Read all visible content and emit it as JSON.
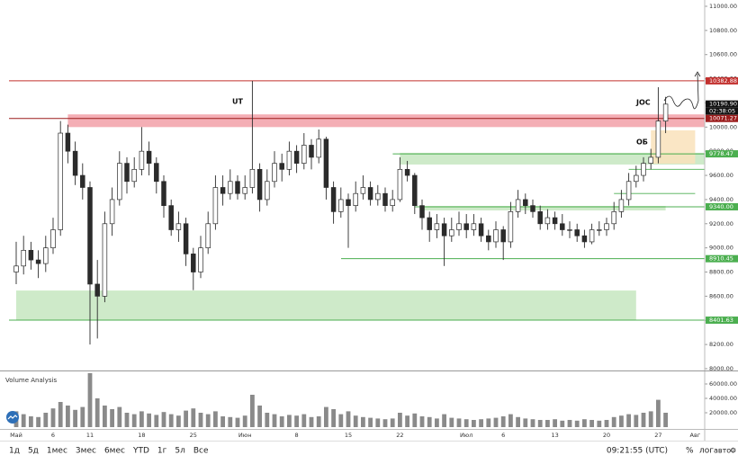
{
  "chart_data": {
    "type": "candlestick",
    "categories": [
      "Май",
      null,
      null,
      null,
      null,
      "6",
      null,
      null,
      null,
      null,
      "11",
      null,
      null,
      null,
      null,
      null,
      null,
      "18",
      null,
      null,
      null,
      null,
      null,
      null,
      "25",
      null,
      null,
      null,
      null,
      null,
      null,
      "Июн",
      null,
      null,
      null,
      null,
      null,
      null,
      "8",
      null,
      null,
      null,
      null,
      null,
      null,
      "15",
      null,
      null,
      null,
      null,
      null,
      null,
      "22",
      null,
      null,
      null,
      null,
      null,
      null,
      null,
      null,
      "Июл",
      null,
      null,
      null,
      null,
      "6",
      null,
      null,
      null,
      null,
      null,
      null,
      "13",
      null,
      null,
      null,
      null,
      null,
      null,
      "20",
      null,
      null,
      null,
      null,
      null,
      null,
      "27",
      null,
      null,
      null,
      null,
      "Авг"
    ],
    "open": [
      8800,
      8850,
      8980,
      8900,
      8870,
      9000,
      9150,
      9950,
      9800,
      9600,
      9500,
      8700,
      8600,
      9200,
      9400,
      9700,
      9550,
      9650,
      9800,
      9700,
      9550,
      9350,
      9150,
      9200,
      8950,
      8800,
      9000,
      9200,
      9500,
      9450,
      9550,
      9450,
      9500,
      9650,
      9400,
      9550,
      9700,
      9650,
      9800,
      9700,
      9850,
      9750,
      9900,
      9500,
      9300,
      9400,
      9350,
      9450,
      9500,
      9400,
      9450,
      9350,
      9400,
      9650,
      9600,
      9350,
      9250,
      9150,
      9200,
      9100,
      9150,
      9200,
      9150,
      9200,
      9100,
      9050,
      9150,
      9050,
      9300,
      9400,
      9350,
      9300,
      9200,
      9250,
      9200,
      9150,
      9150,
      9100,
      9050,
      9150,
      9150,
      9200,
      9300,
      9400,
      9550,
      9600,
      9700,
      9750,
      10050,
      null,
      null,
      null,
      null
    ],
    "high": [
      9050,
      9100,
      9050,
      8980,
      9100,
      9250,
      10050,
      10020,
      9880,
      9700,
      9550,
      8900,
      9300,
      9500,
      9800,
      9750,
      9750,
      10000,
      9880,
      9750,
      9600,
      9400,
      9300,
      9250,
      9000,
      9100,
      9300,
      9600,
      9600,
      9650,
      9600,
      9600,
      10382,
      9700,
      9650,
      9800,
      9780,
      9880,
      9850,
      9950,
      9900,
      9980,
      9920,
      9550,
      9500,
      9450,
      9550,
      9600,
      9550,
      9520,
      9500,
      9480,
      9750,
      9720,
      9620,
      9400,
      9300,
      9280,
      9250,
      9250,
      9300,
      9280,
      9280,
      9250,
      9150,
      9220,
      9180,
      9380,
      9480,
      9450,
      9400,
      9350,
      9320,
      9300,
      9280,
      9220,
      9200,
      9150,
      9200,
      9220,
      9250,
      9380,
      9480,
      9620,
      9680,
      9750,
      9820,
      10330,
      10250,
      null,
      null,
      null,
      null
    ],
    "low": [
      8700,
      8780,
      8820,
      8750,
      8800,
      8950,
      9100,
      9700,
      9520,
      9400,
      8200,
      8250,
      8550,
      9100,
      9350,
      9450,
      9500,
      9600,
      9600,
      9450,
      9250,
      9100,
      9050,
      8850,
      8650,
      8750,
      8950,
      9150,
      9350,
      9400,
      9400,
      9400,
      9450,
      9300,
      9350,
      9500,
      9550,
      9600,
      9620,
      9650,
      9650,
      9700,
      9400,
      9200,
      9250,
      9000,
      9300,
      9400,
      9350,
      9350,
      9300,
      9300,
      9380,
      9550,
      9280,
      9150,
      9050,
      9080,
      8850,
      9050,
      9100,
      9080,
      9100,
      9050,
      8980,
      9000,
      8900,
      9000,
      9250,
      9280,
      9250,
      9150,
      9150,
      9150,
      9100,
      9080,
      9050,
      9000,
      9030,
      9100,
      9100,
      9150,
      9250,
      9350,
      9500,
      9550,
      9650,
      9700,
      9950,
      null,
      null,
      null,
      null
    ],
    "close": [
      8850,
      8980,
      8900,
      8870,
      9000,
      9150,
      9950,
      9800,
      9600,
      9500,
      8700,
      8600,
      9200,
      9400,
      9700,
      9550,
      9650,
      9800,
      9700,
      9550,
      9350,
      9150,
      9200,
      8950,
      8800,
      9000,
      9200,
      9500,
      9450,
      9550,
      9450,
      9500,
      9650,
      9400,
      9550,
      9700,
      9650,
      9800,
      9700,
      9850,
      9750,
      9900,
      9500,
      9300,
      9400,
      9350,
      9450,
      9500,
      9400,
      9450,
      9350,
      9400,
      9650,
      9600,
      9350,
      9250,
      9150,
      9200,
      9100,
      9150,
      9200,
      9150,
      9200,
      9100,
      9050,
      9150,
      9050,
      9300,
      9400,
      9350,
      9300,
      9200,
      9250,
      9200,
      9150,
      9150,
      9100,
      9050,
      9150,
      9150,
      9200,
      9300,
      9400,
      9550,
      9600,
      9700,
      9750,
      10050,
      10190,
      null,
      null,
      null,
      null
    ],
    "up_color": "#ffffff",
    "down_color": "#2b2b2b",
    "color": "#2b2b2b",
    "ylim": [
      7985,
      11052
    ],
    "yticks": [
      {
        "value": 8000,
        "label": "8000.00"
      },
      {
        "value": 8200,
        "label": "8200.00"
      },
      {
        "value": 8400,
        "label": "8400.00"
      },
      {
        "value": 8600,
        "label": "8600.00"
      },
      {
        "value": 8800,
        "label": "8800.00"
      },
      {
        "value": 9000,
        "label": "9000.00"
      },
      {
        "value": 9200,
        "label": "9200.00"
      },
      {
        "value": 9400,
        "label": "9400.00"
      },
      {
        "value": 9600,
        "label": "9600.00"
      },
      {
        "value": 9800,
        "label": "9800.00"
      },
      {
        "value": 10000,
        "label": "10000.00"
      },
      {
        "value": 10200,
        "label": "10200.00"
      },
      {
        "value": 10400,
        "label": "10400.00"
      },
      {
        "value": 10600,
        "label": "10600.00"
      },
      {
        "value": 10800,
        "label": "10800.00"
      },
      {
        "value": 11000,
        "label": "11000.00"
      }
    ],
    "levels": [
      {
        "value": 10382.88,
        "color": "#c2302e",
        "start": 0
      },
      {
        "value": 10190.9,
        "label": "10190.90",
        "color": "#111111"
      },
      {
        "value": 10071.27,
        "color": "#9b1c1c",
        "start": 0
      },
      {
        "value": 9778.47,
        "color": "#4caf50",
        "start": 52
      },
      {
        "value": 9340,
        "label": "9340.00",
        "color": "#4caf50",
        "start": 55
      },
      {
        "value": 8910.45,
        "color": "#4caf50",
        "start": 45
      },
      {
        "value": 8401.63,
        "color": "#4caf50",
        "start": 0
      }
    ],
    "countdown": "02:38:05",
    "lines": [
      {
        "value": 9650,
        "start": 83
      },
      {
        "value": 9450,
        "start": 81,
        "end": 92
      }
    ],
    "zones": [
      {
        "low": 10000,
        "high": 10105,
        "start": 7,
        "color": "#f2a0a8"
      },
      {
        "low": 9690,
        "high": 9787,
        "start": 52,
        "color": "#c5e6c0"
      },
      {
        "low": 9310,
        "high": 9347,
        "start": 55,
        "end": 88,
        "color": "#c5e6c0"
      },
      {
        "low": 8402,
        "high": 8647,
        "start": 0,
        "end": 84,
        "color": "#c5e6c0"
      },
      {
        "low": 9697,
        "high": 9973,
        "start": 86,
        "end": 92,
        "color": "#f9e2bb"
      }
    ],
    "annotations": [
      "UT",
      "JOC",
      "ОБ"
    ],
    "volume": {
      "title": "Volume Analysis",
      "color": "#8a8a8a",
      "ylim": [
        0,
        77500
      ],
      "yticks": [
        {
          "value": 20000,
          "label": "20000.00"
        },
        {
          "value": 40000,
          "label": "40000.00"
        },
        {
          "value": 60000,
          "label": "60000.00"
        }
      ],
      "values": [
        22000,
        18000,
        15000,
        14000,
        20000,
        26000,
        35000,
        30000,
        24000,
        28000,
        75000,
        40000,
        30000,
        25000,
        28000,
        20000,
        18000,
        22000,
        19000,
        17000,
        21000,
        18000,
        16000,
        23000,
        26000,
        20000,
        18000,
        22000,
        15000,
        14000,
        13000,
        16000,
        45000,
        30000,
        20000,
        18000,
        15000,
        17000,
        16000,
        18000,
        14000,
        15000,
        28000,
        25000,
        18000,
        22000,
        16000,
        14000,
        13000,
        12000,
        11000,
        12000,
        20000,
        16000,
        19000,
        15000,
        14000,
        12000,
        18000,
        13000,
        12000,
        11000,
        10000,
        11000,
        12000,
        13000,
        15000,
        18000,
        14000,
        12000,
        11000,
        10000,
        10000,
        11000,
        9000,
        10000,
        9000,
        11000,
        10000,
        9000,
        10000,
        14000,
        16000,
        18000,
        17000,
        20000,
        22000,
        38000,
        20000,
        null,
        null,
        null,
        null
      ]
    }
  },
  "toolbar": {
    "ranges": [
      "1д",
      "5д",
      "1мес",
      "3мес",
      "6мес",
      "YTD",
      "1г",
      "5л",
      "Все"
    ],
    "time": "09:21:55 (UTC)",
    "options": [
      "%",
      "лог",
      "авто"
    ]
  }
}
